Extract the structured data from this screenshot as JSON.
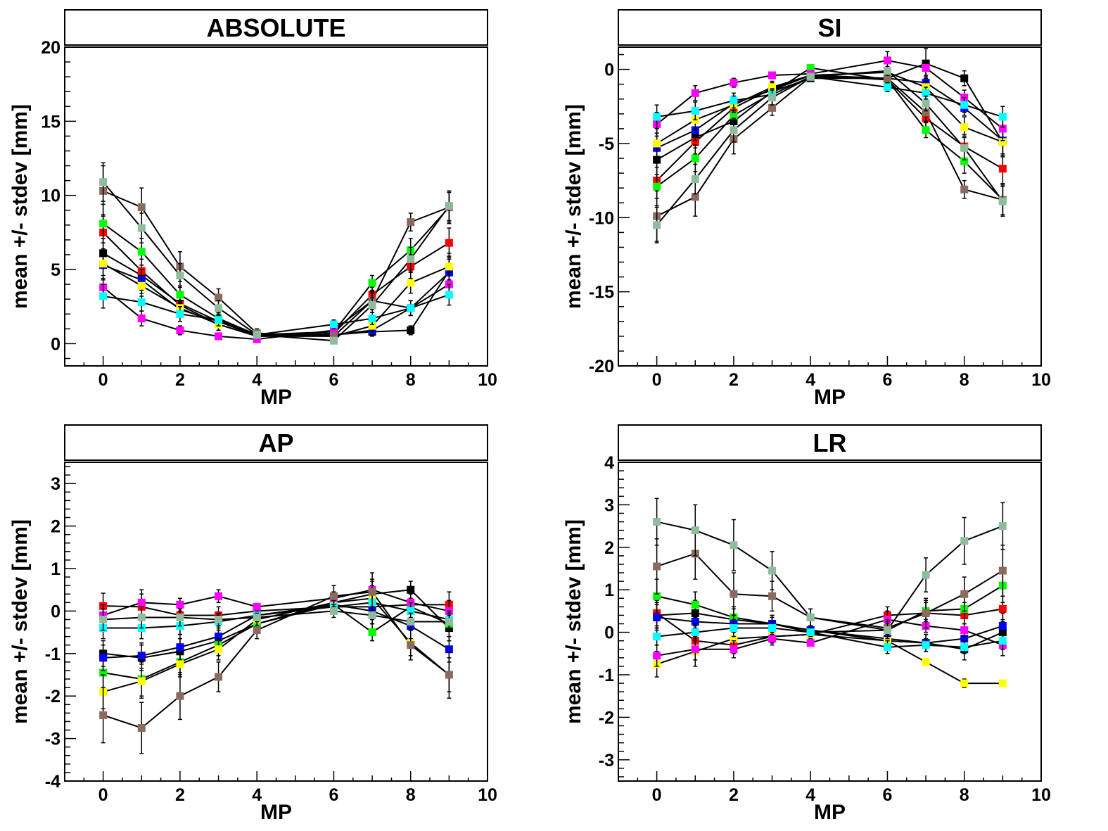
{
  "chart_data": [
    {
      "type": "line",
      "title": "ABSOLUTE",
      "xlabel": "MP",
      "ylabel": "mean +/- stdev [mm]",
      "xlim": [
        -1,
        10
      ],
      "ylim": [
        -1.5,
        20
      ],
      "xticks": [
        0,
        2,
        4,
        6,
        8,
        10
      ],
      "yticks": [
        0,
        5,
        10,
        15,
        20
      ],
      "x": [
        0,
        1,
        2,
        3,
        4,
        6,
        7,
        8,
        9
      ],
      "series": [
        {
          "color": "#000000",
          "values": [
            6.1,
            4.6,
            2.7,
            1.5,
            0.6,
            0.6,
            0.8,
            0.9,
            4.9
          ],
          "errors": [
            1.0,
            0.7,
            0.5,
            0.4,
            0.2,
            0.2,
            0.3,
            0.3,
            1.0
          ]
        },
        {
          "color": "#ff0000",
          "values": [
            7.5,
            4.9,
            2.6,
            1.3,
            0.5,
            0.7,
            3.3,
            5.2,
            6.8
          ],
          "errors": [
            1.2,
            0.8,
            0.5,
            0.4,
            0.2,
            0.3,
            0.5,
            0.8,
            1.0
          ]
        },
        {
          "color": "#00ff00",
          "values": [
            8.1,
            6.2,
            3.3,
            1.7,
            0.6,
            0.8,
            4.1,
            6.3,
            9.2
          ],
          "errors": [
            1.3,
            0.9,
            0.6,
            0.4,
            0.2,
            0.3,
            0.5,
            0.8,
            1.0
          ]
        },
        {
          "color": "#0000ff",
          "values": [
            5.3,
            4.3,
            2.3,
            1.5,
            0.5,
            0.6,
            0.9,
            2.4,
            4.8
          ],
          "errors": [
            1.0,
            0.7,
            0.5,
            0.4,
            0.2,
            0.2,
            0.3,
            0.5,
            0.9
          ]
        },
        {
          "color": "#ffff00",
          "values": [
            5.4,
            3.9,
            2.4,
            1.3,
            0.5,
            0.5,
            1.2,
            4.1,
            5.2
          ],
          "errors": [
            1.0,
            0.7,
            0.5,
            0.4,
            0.2,
            0.2,
            0.4,
            0.7,
            0.9
          ]
        },
        {
          "color": "#ff00ff",
          "values": [
            3.8,
            1.7,
            0.9,
            0.5,
            0.3,
            0.9,
            2.9,
            2.4,
            4.0
          ],
          "errors": [
            0.8,
            0.5,
            0.3,
            0.2,
            0.1,
            0.3,
            0.5,
            0.5,
            0.8
          ]
        },
        {
          "color": "#00ffff",
          "values": [
            3.2,
            2.8,
            2.0,
            1.6,
            0.6,
            1.3,
            1.7,
            2.4,
            3.3
          ],
          "errors": [
            0.8,
            0.6,
            0.5,
            0.4,
            0.2,
            0.3,
            0.4,
            0.5,
            0.7
          ]
        },
        {
          "color": "#8b6b5e",
          "values": [
            10.3,
            9.2,
            5.2,
            3.1,
            0.7,
            0.5,
            2.9,
            8.2,
            9.2
          ],
          "errors": [
            1.7,
            1.3,
            1.0,
            0.6,
            0.3,
            0.2,
            0.6,
            0.6,
            1.1
          ]
        },
        {
          "color": "#8fbc9f",
          "values": [
            10.9,
            7.8,
            4.6,
            2.4,
            0.6,
            0.2,
            2.6,
            5.7,
            9.3
          ],
          "errors": [
            1.3,
            1.0,
            0.8,
            0.5,
            0.2,
            0.2,
            0.5,
            0.8,
            1.0
          ]
        }
      ]
    },
    {
      "type": "line",
      "title": "SI",
      "xlabel": "MP",
      "ylabel": "mean +/- stdev [mm]",
      "xlim": [
        -1,
        10
      ],
      "ylim": [
        -20,
        1.5
      ],
      "xticks": [
        0,
        2,
        4,
        6,
        8,
        10
      ],
      "yticks": [
        -20,
        -15,
        -10,
        -5,
        0
      ],
      "x": [
        0,
        1,
        2,
        3,
        4,
        6,
        7,
        8,
        9
      ],
      "series": [
        {
          "color": "#000000",
          "values": [
            -6.1,
            -4.6,
            -3.5,
            -1.5,
            -0.6,
            -0.6,
            0.4,
            -0.6,
            -4.9
          ],
          "errors": [
            1.0,
            0.7,
            0.5,
            0.4,
            0.2,
            0.3,
            1.0,
            0.5,
            1.0
          ]
        },
        {
          "color": "#ff0000",
          "values": [
            -7.5,
            -4.9,
            -2.6,
            -1.3,
            -0.4,
            -0.7,
            -3.3,
            -5.2,
            -6.7
          ],
          "errors": [
            1.2,
            0.8,
            0.5,
            0.4,
            0.2,
            0.3,
            0.6,
            0.8,
            1.0
          ]
        },
        {
          "color": "#00ff00",
          "values": [
            -7.9,
            -6.0,
            -3.1,
            -1.6,
            0.1,
            -0.7,
            -4.1,
            -6.2,
            -8.8
          ],
          "errors": [
            1.3,
            0.9,
            0.6,
            0.4,
            0.2,
            0.3,
            0.5,
            0.8,
            1.0
          ]
        },
        {
          "color": "#0000ff",
          "values": [
            -5.3,
            -4.1,
            -2.3,
            -1.4,
            -0.4,
            -0.6,
            -0.9,
            -2.6,
            -4.8
          ],
          "errors": [
            1.0,
            0.7,
            0.5,
            0.4,
            0.2,
            0.2,
            0.4,
            0.5,
            0.9
          ]
        },
        {
          "color": "#ffff00",
          "values": [
            -5.0,
            -3.4,
            -2.4,
            -1.2,
            -0.4,
            -0.2,
            -1.2,
            -3.9,
            -4.9
          ],
          "errors": [
            1.0,
            0.7,
            0.5,
            0.4,
            0.2,
            0.3,
            0.4,
            0.7,
            0.9
          ]
        },
        {
          "color": "#ff00ff",
          "values": [
            -3.7,
            -1.6,
            -0.9,
            -0.4,
            -0.3,
            0.6,
            0.1,
            -1.9,
            -4.0
          ],
          "errors": [
            0.8,
            0.5,
            0.3,
            0.2,
            0.1,
            0.6,
            0.5,
            0.5,
            0.8
          ]
        },
        {
          "color": "#00ffff",
          "values": [
            -3.2,
            -2.8,
            -2.1,
            -1.7,
            -0.5,
            -1.2,
            -1.6,
            -2.4,
            -3.2
          ],
          "errors": [
            0.8,
            0.6,
            0.5,
            0.4,
            0.2,
            0.3,
            0.4,
            0.5,
            0.7
          ]
        },
        {
          "color": "#8b6b5e",
          "values": [
            -9.9,
            -8.6,
            -4.7,
            -2.6,
            -0.5,
            -0.6,
            -2.9,
            -8.1,
            -8.8
          ],
          "errors": [
            1.7,
            1.3,
            1.0,
            0.5,
            0.2,
            0.3,
            0.6,
            0.6,
            1.1
          ]
        },
        {
          "color": "#8fbc9f",
          "values": [
            -10.5,
            -7.4,
            -4.1,
            -1.9,
            -0.5,
            -0.1,
            -2.3,
            -5.3,
            -8.9
          ],
          "errors": [
            1.2,
            1.0,
            0.8,
            0.5,
            0.2,
            0.3,
            0.5,
            0.8,
            1.0
          ]
        }
      ]
    },
    {
      "type": "line",
      "title": "AP",
      "xlabel": "MP",
      "ylabel": "mean +/- stdev [mm]",
      "xlim": [
        -1,
        10
      ],
      "ylim": [
        -4,
        3.5
      ],
      "xticks": [
        0,
        2,
        4,
        6,
        8,
        10
      ],
      "yticks": [
        -4,
        -3,
        -2,
        -1,
        0,
        1,
        2,
        3
      ],
      "x": [
        0,
        1,
        2,
        3,
        4,
        6,
        7,
        8,
        9
      ],
      "series": [
        {
          "color": "#000000",
          "values": [
            -1.0,
            -1.1,
            -0.95,
            -0.7,
            -0.3,
            0.2,
            0.4,
            0.5,
            -0.4
          ],
          "errors": [
            0.3,
            0.3,
            0.3,
            0.25,
            0.15,
            0.15,
            0.3,
            0.2,
            0.3
          ]
        },
        {
          "color": "#ff0000",
          "values": [
            0.12,
            0.1,
            -0.1,
            -0.1,
            0.0,
            0.1,
            0.1,
            0.15,
            0.15
          ],
          "errors": [
            0.3,
            0.3,
            0.25,
            0.2,
            0.1,
            0.15,
            0.3,
            0.3,
            0.3
          ]
        },
        {
          "color": "#00ff00",
          "values": [
            -1.45,
            -1.6,
            -1.2,
            -0.8,
            -0.3,
            0.15,
            -0.5,
            0.1,
            -0.3
          ],
          "errors": [
            0.4,
            0.4,
            0.3,
            0.25,
            0.15,
            0.15,
            0.2,
            0.3,
            0.3
          ]
        },
        {
          "color": "#0000ff",
          "values": [
            -1.1,
            -1.05,
            -0.85,
            -0.6,
            -0.1,
            0.15,
            0.0,
            -0.35,
            -0.9
          ],
          "errors": [
            0.3,
            0.3,
            0.3,
            0.25,
            0.15,
            0.15,
            0.3,
            0.3,
            0.3
          ]
        },
        {
          "color": "#ffff00",
          "values": [
            -1.9,
            -1.65,
            -1.25,
            -0.9,
            -0.2,
            0.2,
            0.3,
            -0.75,
            -1.5
          ],
          "errors": [
            0.4,
            0.4,
            0.3,
            0.25,
            0.15,
            0.15,
            0.3,
            0.3,
            0.4
          ]
        },
        {
          "color": "#ff00ff",
          "values": [
            -0.1,
            0.2,
            0.15,
            0.35,
            0.1,
            0.3,
            0.5,
            0.2,
            0.0
          ],
          "errors": [
            0.25,
            0.3,
            0.15,
            0.15,
            0.05,
            0.15,
            0.25,
            0.25,
            0.25
          ]
        },
        {
          "color": "#00ffff",
          "values": [
            -0.4,
            -0.4,
            -0.35,
            -0.25,
            -0.1,
            0.1,
            0.2,
            0.0,
            -0.2
          ],
          "errors": [
            0.25,
            0.25,
            0.2,
            0.15,
            0.1,
            0.15,
            0.2,
            0.2,
            0.2
          ]
        },
        {
          "color": "#8b6b5e",
          "values": [
            -2.45,
            -2.75,
            -2.0,
            -1.55,
            -0.45,
            0.35,
            0.45,
            -0.8,
            -1.5
          ],
          "errors": [
            0.65,
            0.6,
            0.55,
            0.35,
            0.2,
            0.25,
            0.45,
            0.35,
            0.55
          ]
        },
        {
          "color": "#8fbc9f",
          "values": [
            -0.2,
            -0.15,
            -0.15,
            -0.2,
            -0.15,
            0.0,
            -0.1,
            -0.25,
            -0.25
          ],
          "errors": [
            0.25,
            0.25,
            0.2,
            0.15,
            0.1,
            0.15,
            0.2,
            0.2,
            0.2
          ]
        }
      ]
    },
    {
      "type": "line",
      "title": "LR",
      "xlabel": "MP",
      "ylabel": "mean +/- stdev [mm]",
      "xlim": [
        -1,
        10
      ],
      "ylim": [
        -3.5,
        4
      ],
      "xticks": [
        0,
        2,
        4,
        6,
        8,
        10
      ],
      "yticks": [
        -3,
        -2,
        -1,
        0,
        1,
        2,
        3,
        4
      ],
      "x": [
        0,
        1,
        2,
        3,
        4,
        6,
        7,
        8,
        9
      ],
      "series": [
        {
          "color": "#000000",
          "values": [
            0.4,
            0.45,
            0.3,
            0.2,
            0.05,
            -0.2,
            -0.25,
            -0.4,
            0.0
          ],
          "errors": [
            0.3,
            0.3,
            0.25,
            0.2,
            0.1,
            0.15,
            0.2,
            0.25,
            0.3
          ]
        },
        {
          "color": "#ff0000",
          "values": [
            0.45,
            -0.2,
            -0.3,
            -0.1,
            -0.05,
            0.4,
            0.45,
            0.4,
            0.55
          ],
          "errors": [
            0.3,
            0.3,
            0.2,
            0.15,
            0.1,
            0.2,
            0.25,
            0.3,
            0.3
          ]
        },
        {
          "color": "#00ff00",
          "values": [
            0.85,
            0.65,
            0.35,
            0.2,
            0.0,
            0.05,
            0.5,
            0.55,
            1.1
          ],
          "errors": [
            0.4,
            0.3,
            0.25,
            0.2,
            0.1,
            0.15,
            0.25,
            0.35,
            0.4
          ]
        },
        {
          "color": "#0000ff",
          "values": [
            0.35,
            0.25,
            0.2,
            0.2,
            0.05,
            -0.15,
            -0.25,
            -0.15,
            0.15
          ],
          "errors": [
            0.3,
            0.25,
            0.2,
            0.15,
            0.1,
            0.15,
            0.2,
            0.2,
            0.3
          ]
        },
        {
          "color": "#ffff00",
          "values": [
            -0.75,
            -0.45,
            -0.15,
            -0.1,
            -0.05,
            -0.2,
            -0.7,
            -1.2,
            -1.2
          ],
          "errors": [
            0.3,
            0.35,
            0.25,
            0.15,
            0.1,
            0.15,
            0.05,
            0.1,
            0.05
          ]
        },
        {
          "color": "#ff00ff",
          "values": [
            -0.55,
            -0.4,
            -0.4,
            -0.15,
            -0.25,
            0.3,
            0.15,
            0.05,
            -0.3
          ],
          "errors": [
            0.25,
            0.25,
            0.2,
            0.15,
            0.05,
            0.2,
            0.15,
            0.15,
            0.25
          ]
        },
        {
          "color": "#00ffff",
          "values": [
            -0.1,
            0.0,
            0.1,
            0.1,
            0.0,
            -0.35,
            -0.3,
            -0.35,
            -0.2
          ],
          "errors": [
            0.2,
            0.2,
            0.2,
            0.15,
            0.1,
            0.15,
            0.15,
            0.15,
            0.2
          ]
        },
        {
          "color": "#8b6b5e",
          "values": [
            1.55,
            1.85,
            0.9,
            0.85,
            0.35,
            0.1,
            0.45,
            0.9,
            1.45
          ],
          "errors": [
            0.65,
            0.6,
            0.5,
            0.35,
            0.2,
            0.2,
            0.35,
            0.4,
            0.6
          ]
        },
        {
          "color": "#8fbc9f",
          "values": [
            2.6,
            2.4,
            2.05,
            1.45,
            0.35,
            0.05,
            1.35,
            2.15,
            2.5
          ],
          "errors": [
            0.55,
            0.6,
            0.6,
            0.45,
            0.2,
            0.2,
            0.4,
            0.55,
            0.55
          ]
        }
      ]
    }
  ]
}
